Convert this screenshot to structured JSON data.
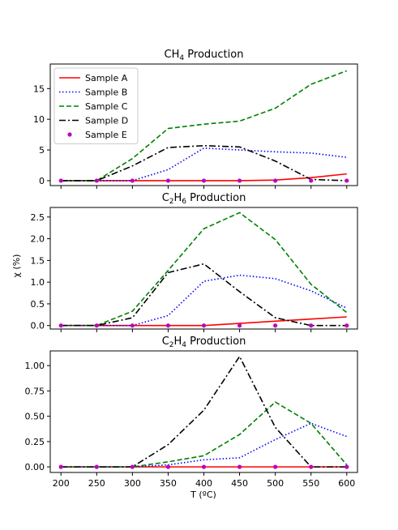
{
  "figure": {
    "xlabel": "T (ºC)",
    "ylabel": "χ (%)"
  },
  "legend": {
    "placement": "upper-left of top panel",
    "entries": [
      {
        "name": "Sample A",
        "color": "#ff0000",
        "style": "solid"
      },
      {
        "name": "Sample B",
        "color": "#0000ff",
        "style": "dotted"
      },
      {
        "name": "Sample C",
        "color": "#008000",
        "style": "dashed"
      },
      {
        "name": "Sample D",
        "color": "#000000",
        "style": "dashdot"
      },
      {
        "name": "Sample E",
        "color": "#bf00bf",
        "style": "markers"
      }
    ]
  },
  "chart_data": [
    {
      "type": "line",
      "title_main": "CH",
      "title_sub": "4",
      "title_rest": " Production",
      "x": [
        200,
        250,
        300,
        350,
        400,
        450,
        500,
        550,
        600
      ],
      "xlim": [
        185,
        615
      ],
      "ylim": [
        -0.8,
        19
      ],
      "yticks": [
        0,
        5,
        10,
        15
      ],
      "ytick_labels": [
        "0",
        "5",
        "10",
        "15"
      ],
      "grid": false,
      "series": [
        {
          "name": "Sample A",
          "values": [
            0,
            0,
            0,
            0,
            0,
            0,
            0.1,
            0.5,
            1.1
          ]
        },
        {
          "name": "Sample B",
          "values": [
            0,
            0,
            0,
            1.8,
            5.3,
            5.0,
            4.7,
            4.5,
            3.8
          ]
        },
        {
          "name": "Sample C",
          "values": [
            0,
            0,
            3.6,
            8.5,
            9.2,
            9.7,
            11.8,
            15.7,
            17.9
          ]
        },
        {
          "name": "Sample D",
          "values": [
            0,
            0,
            2.4,
            5.4,
            5.7,
            5.5,
            3.2,
            0.2,
            0
          ]
        },
        {
          "name": "Sample E",
          "values": [
            0,
            0,
            0,
            0,
            0,
            0,
            0,
            0,
            0
          ]
        }
      ]
    },
    {
      "type": "line",
      "title_main": "C",
      "title_sub": "2",
      "title_main2": "H",
      "title_sub2": "6",
      "title_rest": " Production",
      "x": [
        200,
        250,
        300,
        350,
        400,
        450,
        500,
        550,
        600
      ],
      "xlim": [
        185,
        615
      ],
      "ylim": [
        -0.08,
        2.72
      ],
      "yticks": [
        0,
        0.5,
        1.0,
        1.5,
        2.0,
        2.5
      ],
      "ytick_labels": [
        "0.0",
        "0.5",
        "1.0",
        "1.5",
        "2.0",
        "2.5"
      ],
      "grid": false,
      "series": [
        {
          "name": "Sample A",
          "values": [
            0,
            0,
            0,
            0,
            0,
            0.05,
            0.1,
            0.15,
            0.2
          ]
        },
        {
          "name": "Sample B",
          "values": [
            0,
            0,
            0,
            0.23,
            1.02,
            1.16,
            1.08,
            0.8,
            0.4
          ]
        },
        {
          "name": "Sample C",
          "values": [
            0,
            0,
            0.33,
            1.27,
            2.23,
            2.6,
            1.98,
            0.95,
            0.3
          ]
        },
        {
          "name": "Sample D",
          "values": [
            0,
            0,
            0.18,
            1.22,
            1.42,
            0.78,
            0.18,
            0,
            0
          ]
        },
        {
          "name": "Sample E",
          "values": [
            0,
            0,
            0,
            0,
            0,
            0,
            0,
            0,
            0
          ]
        }
      ]
    },
    {
      "type": "line",
      "title_main": "C",
      "title_sub": "2",
      "title_main2": "H",
      "title_sub2": "4",
      "title_rest": " Production",
      "x": [
        200,
        250,
        300,
        350,
        400,
        450,
        500,
        550,
        600
      ],
      "xlim": [
        185,
        615
      ],
      "ylim": [
        -0.055,
        1.145
      ],
      "yticks": [
        0,
        0.25,
        0.5,
        0.75,
        1.0
      ],
      "ytick_labels": [
        "0.00",
        "0.25",
        "0.50",
        "0.75",
        "1.00"
      ],
      "xticks": [
        200,
        250,
        300,
        350,
        400,
        450,
        500,
        550,
        600
      ],
      "grid": false,
      "series": [
        {
          "name": "Sample A",
          "values": [
            0,
            0,
            0,
            0,
            0,
            0,
            0,
            0,
            0
          ]
        },
        {
          "name": "Sample B",
          "values": [
            0,
            0,
            0,
            0.02,
            0.07,
            0.09,
            0.27,
            0.43,
            0.3
          ]
        },
        {
          "name": "Sample C",
          "values": [
            0,
            0,
            0,
            0.05,
            0.11,
            0.32,
            0.64,
            0.43,
            0.02
          ]
        },
        {
          "name": "Sample D",
          "values": [
            0,
            0,
            0,
            0.22,
            0.56,
            1.09,
            0.39,
            0,
            0
          ]
        },
        {
          "name": "Sample E",
          "values": [
            0,
            0,
            0,
            0,
            0,
            0,
            0,
            0,
            0
          ]
        }
      ]
    }
  ]
}
